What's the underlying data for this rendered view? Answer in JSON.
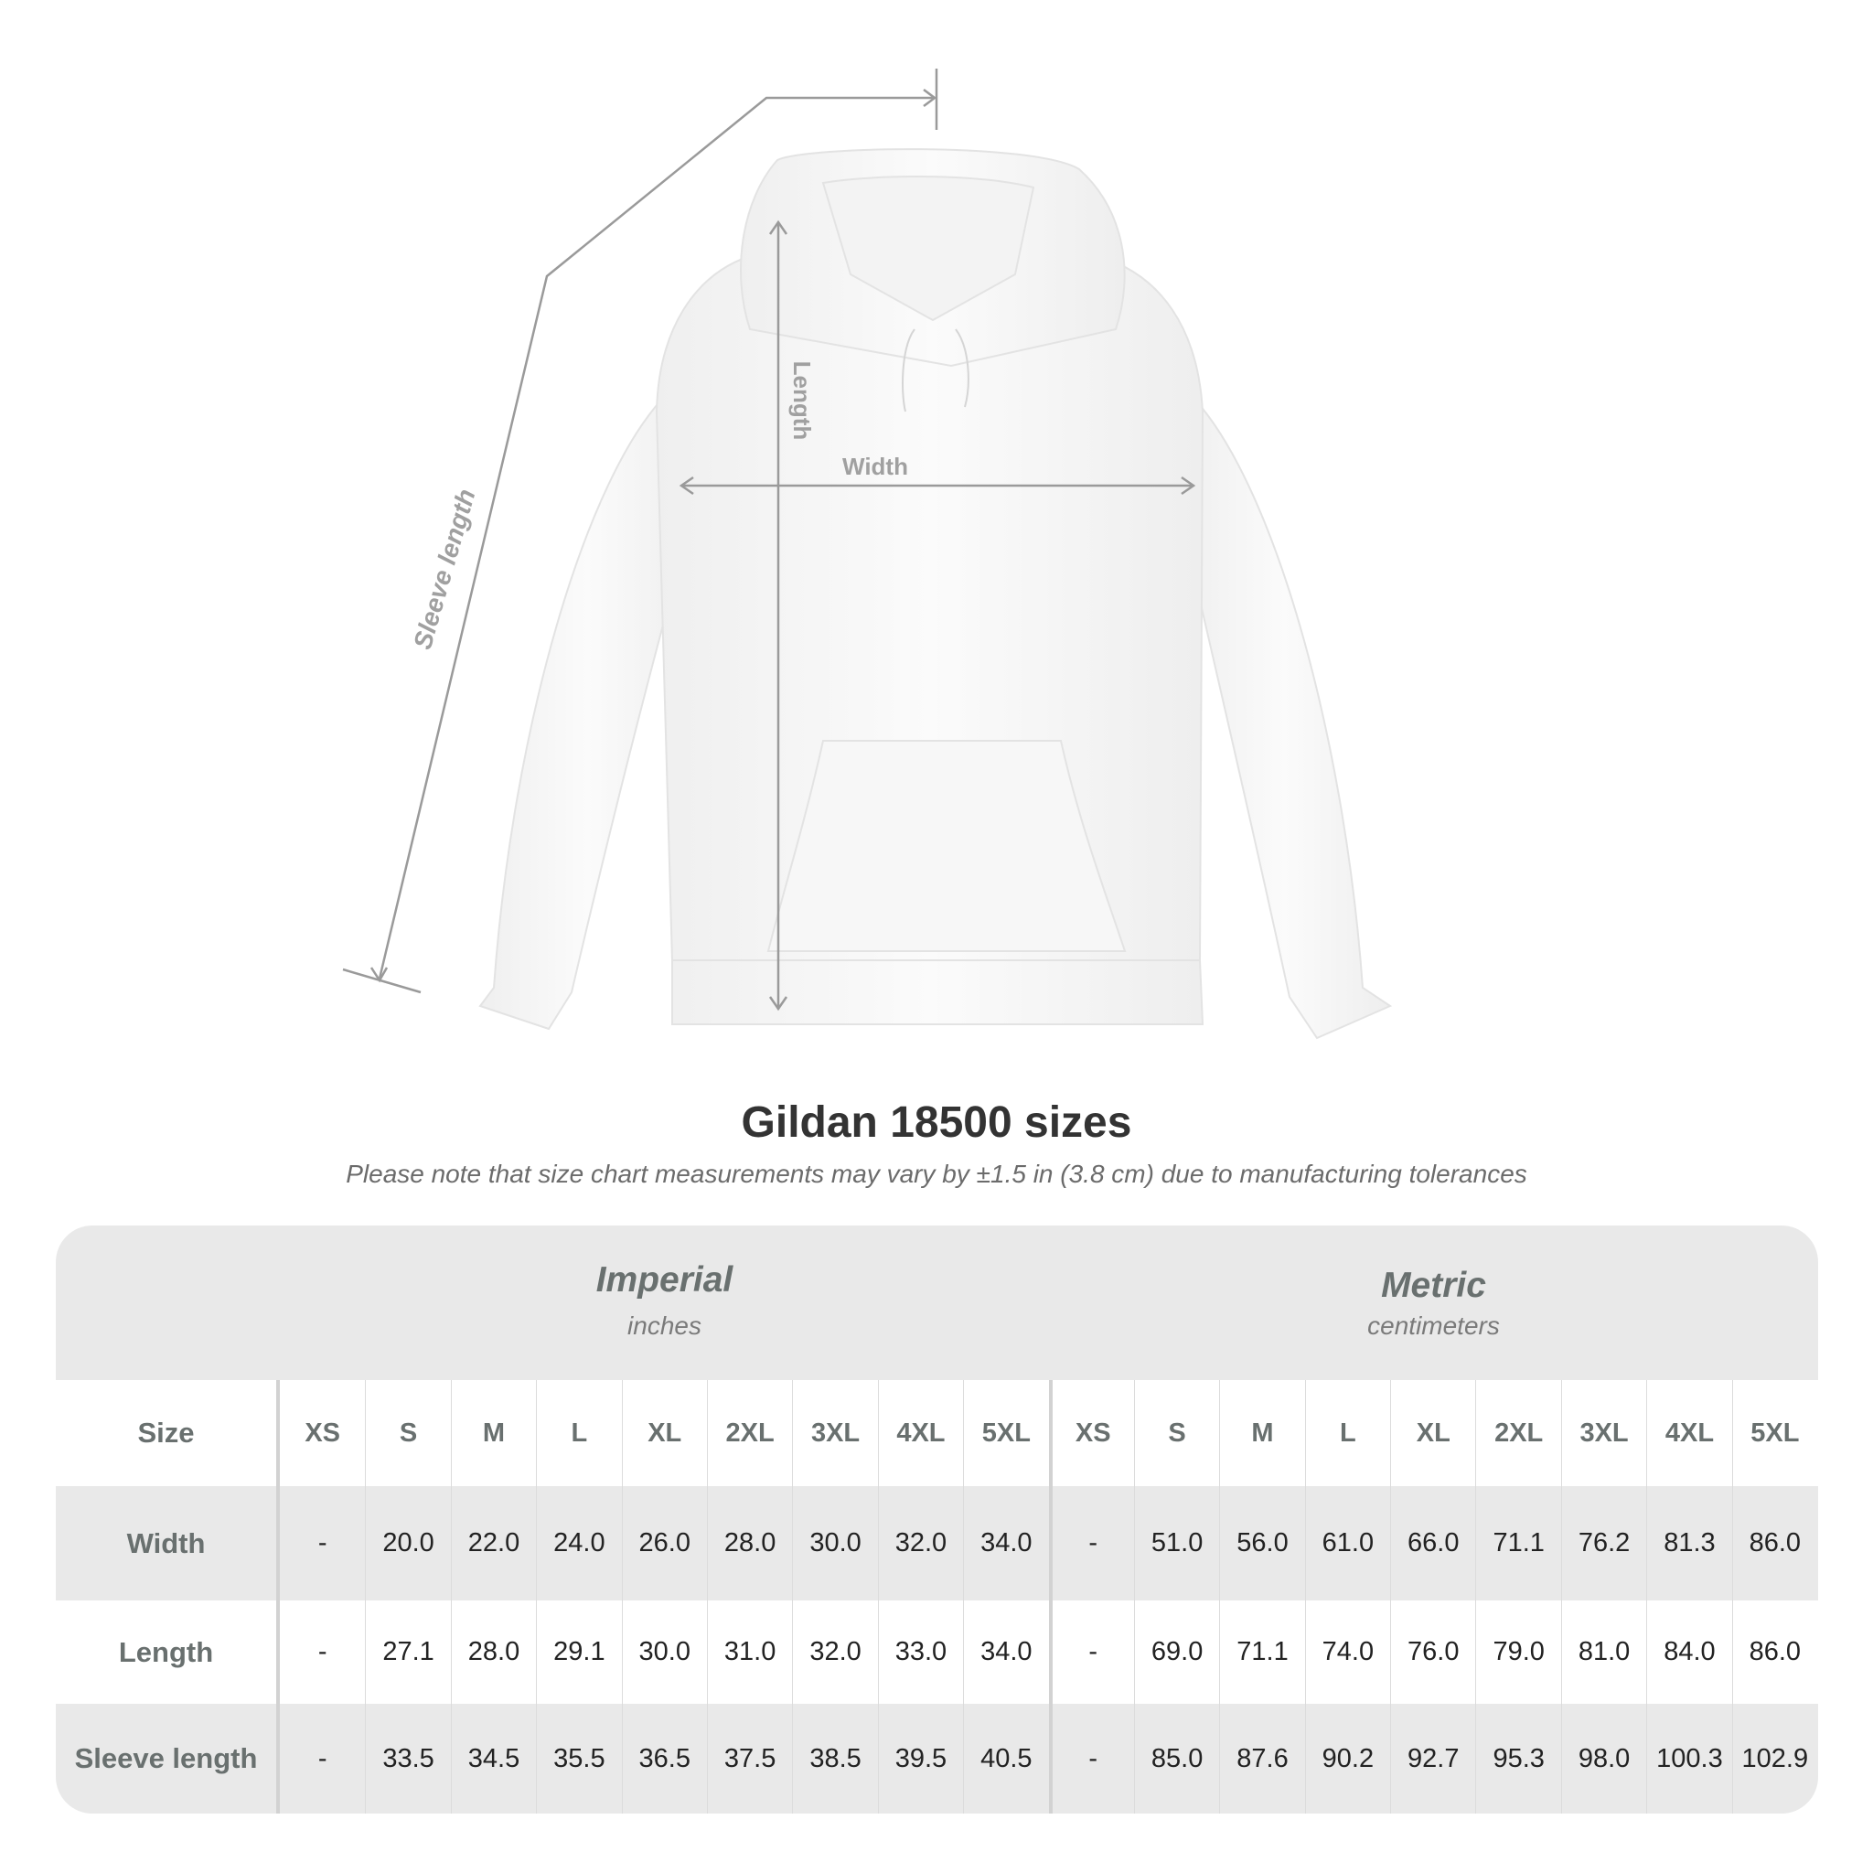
{
  "diagram": {
    "labels": {
      "sleeve": "Sleeve length",
      "length": "Length",
      "width": "Width"
    }
  },
  "title": "Gildan 18500 sizes",
  "note": "Please note that size chart measurements may vary by ±1.5 in (3.8 cm) due to manufacturing tolerances",
  "table": {
    "imperial": {
      "name": "Imperial",
      "unit": "inches"
    },
    "metric": {
      "name": "Metric",
      "unit": "centimeters"
    },
    "size_label": "Size",
    "sizes": [
      "XS",
      "S",
      "M",
      "L",
      "XL",
      "2XL",
      "3XL",
      "4XL",
      "5XL"
    ],
    "rows": [
      {
        "label": "Width",
        "imperial": [
          "-",
          "20.0",
          "22.0",
          "24.0",
          "26.0",
          "28.0",
          "30.0",
          "32.0",
          "34.0"
        ],
        "metric": [
          "-",
          "51.0",
          "56.0",
          "61.0",
          "66.0",
          "71.1",
          "76.2",
          "81.3",
          "86.0"
        ]
      },
      {
        "label": "Length",
        "imperial": [
          "-",
          "27.1",
          "28.0",
          "29.1",
          "30.0",
          "31.0",
          "32.0",
          "33.0",
          "34.0"
        ],
        "metric": [
          "-",
          "69.0",
          "71.1",
          "74.0",
          "76.0",
          "79.0",
          "81.0",
          "84.0",
          "86.0"
        ]
      },
      {
        "label": "Sleeve length",
        "imperial": [
          "-",
          "33.5",
          "34.5",
          "35.5",
          "36.5",
          "37.5",
          "38.5",
          "39.5",
          "40.5"
        ],
        "metric": [
          "-",
          "85.0",
          "87.6",
          "90.2",
          "92.7",
          "95.3",
          "98.0",
          "100.3",
          "102.9"
        ]
      }
    ]
  },
  "colors": {
    "header_text": "#69706f",
    "band": "#e9e9e9",
    "line": "#9a9a9a"
  }
}
